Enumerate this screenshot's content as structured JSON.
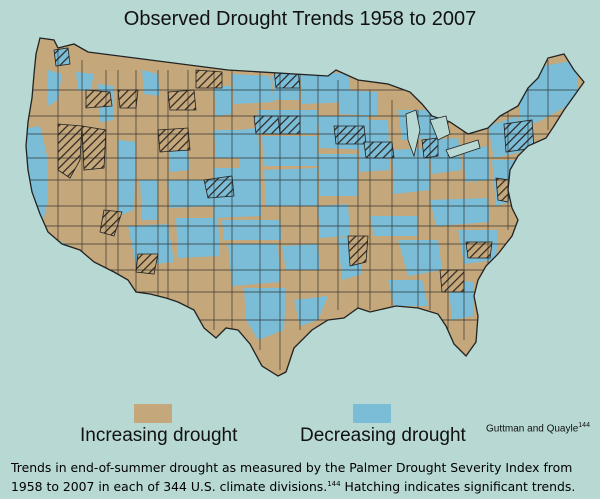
{
  "title": "Observed Drought Trends 1958 to 2007",
  "colors": {
    "background": "#b7d8d3",
    "increasing": "#c4a77a",
    "decreasing": "#7bbcd6",
    "border": "#222222",
    "hatch": "#2a2420"
  },
  "legend": {
    "increasing_label": "Increasing drought",
    "decreasing_label": "Decreasing drought"
  },
  "credit": {
    "text": "Guttman and Quayle",
    "sup": "144"
  },
  "caption": {
    "part1": "Trends in end-of-summer drought as measured by the Palmer Drought Severity Index from 1958 to 2007 in each of 344 U.S. climate divisions.",
    "sup": "144",
    "part2": " Hatching indicates significant trends."
  }
}
